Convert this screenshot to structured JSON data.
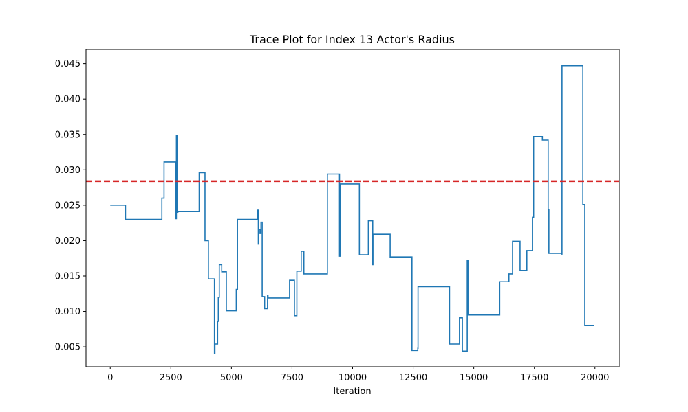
{
  "chart_data": {
    "type": "line",
    "title": "Trace Plot for Index 13 Actor's Radius",
    "xlabel": "Iteration",
    "ylabel": "",
    "xlim": [
      -1000,
      21000
    ],
    "ylim": [
      0.0022,
      0.047
    ],
    "xticks": [
      0,
      2500,
      5000,
      7500,
      10000,
      12500,
      15000,
      17500,
      20000
    ],
    "xtick_labels": [
      "0",
      "2500",
      "5000",
      "7500",
      "10000",
      "12500",
      "15000",
      "17500",
      "20000"
    ],
    "yticks": [
      0.005,
      0.01,
      0.015,
      0.02,
      0.025,
      0.03,
      0.035,
      0.04,
      0.045
    ],
    "ytick_labels": [
      "0.005",
      "0.010",
      "0.015",
      "0.020",
      "0.025",
      "0.030",
      "0.035",
      "0.040",
      "0.045"
    ],
    "grid": false,
    "series": [
      {
        "color": "#1f77b4",
        "drawstyle": "steps-post",
        "x": [
          0,
          620,
          630,
          2130,
          2170,
          2220,
          2690,
          2710,
          2730,
          2760,
          2790,
          2810,
          2830,
          2850,
          3670,
          3680,
          3910,
          4050,
          4270,
          4300,
          4320,
          4430,
          4460,
          4500,
          4600,
          4790,
          4830,
          5200,
          5250,
          6060,
          6080,
          6110,
          6130,
          6180,
          6220,
          6240,
          6270,
          6340,
          6370,
          6490,
          6510,
          6530,
          6560,
          6570,
          6610,
          6650,
          7370,
          7400,
          7450,
          7600,
          7640,
          7700,
          7880,
          7940,
          7990,
          8000,
          8250,
          8250,
          8960,
          9460,
          9490,
          9500,
          10280,
          10300,
          10650,
          10830,
          10840,
          10990,
          11550,
          12450,
          12690,
          12700,
          12730,
          14000,
          14410,
          14530,
          14730,
          14760,
          14780,
          14800,
          14860,
          16070,
          16450,
          16600,
          16910,
          17190,
          17420,
          17470,
          17520,
          17830,
          18070,
          18100,
          18610,
          18640,
          19490,
          19500,
          19580,
          19960
        ],
        "y": [
          0.025,
          0.025,
          0.023,
          0.026,
          0.026,
          0.0311,
          0.0311,
          0.0231,
          0.0348,
          0.024,
          0.0241,
          0.0241,
          0.0241,
          0.0241,
          0.0296,
          0.0296,
          0.02,
          0.0146,
          0.0146,
          0.0041,
          0.0054,
          0.0086,
          0.012,
          0.0166,
          0.0156,
          0.0101,
          0.0101,
          0.0131,
          0.023,
          0.023,
          0.0243,
          0.0195,
          0.0216,
          0.021,
          0.0226,
          0.0226,
          0.0121,
          0.0121,
          0.0104,
          0.0123,
          0.0119,
          0.0119,
          0.0119,
          0.0119,
          0.0119,
          0.0119,
          0.0119,
          0.0144,
          0.0144,
          0.0094,
          0.0094,
          0.0157,
          0.0185,
          0.0185,
          0.0153,
          0.0153,
          0.0153,
          0.0153,
          0.0294,
          0.0178,
          0.028,
          0.028,
          0.018,
          0.018,
          0.0228,
          0.0166,
          0.0209,
          0.0209,
          0.0177,
          0.0045,
          0.0048,
          0.0135,
          0.0135,
          0.0054,
          0.0091,
          0.0044,
          0.0172,
          0.0095,
          0.0095,
          0.0095,
          0.0095,
          0.0142,
          0.0153,
          0.0199,
          0.0158,
          0.0186,
          0.0233,
          0.0347,
          0.0347,
          0.0342,
          0.0244,
          0.0182,
          0.0181,
          0.0447,
          0.0447,
          0.0251,
          0.008,
          0.008
        ]
      }
    ],
    "hlines": [
      {
        "y": 0.0284,
        "color": "#d62728",
        "style": "dashed"
      }
    ]
  }
}
